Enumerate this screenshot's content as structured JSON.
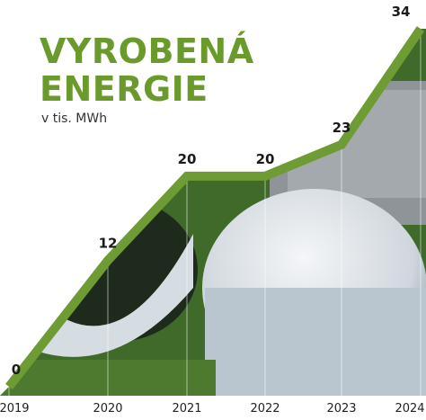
{
  "chart_data": {
    "type": "line",
    "title_lines": [
      "VYROBENÁ",
      "ENERGIE"
    ],
    "subtitle": "v tis. MWh",
    "categories": [
      "2019",
      "2020",
      "2021",
      "2022",
      "2023",
      "2024"
    ],
    "values": [
      0,
      12,
      20,
      20,
      23,
      34
    ],
    "color": "#6f9b34"
  }
}
